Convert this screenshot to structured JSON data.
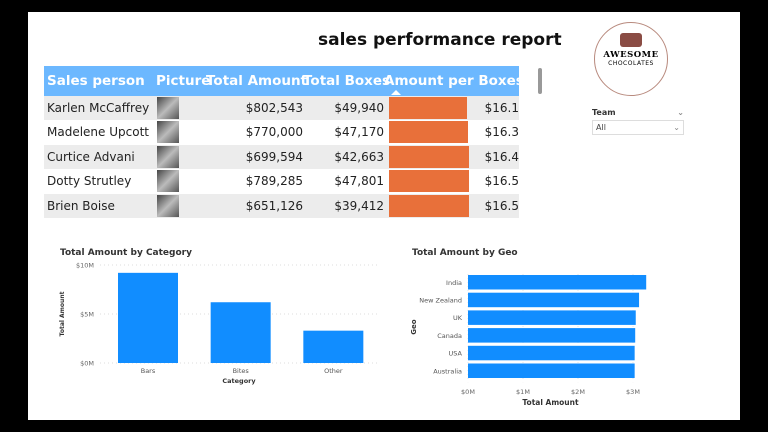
{
  "title": "sales performance report",
  "table": {
    "headers": [
      "Sales person",
      "Picture",
      "Total Amount",
      "Total Boxes",
      "Amount per Boxes"
    ],
    "rows": [
      {
        "name": "Karlen McCaffrey",
        "amount": "$802,543",
        "boxes": "$49,940",
        "per_box": "$16.1",
        "per_box_value": 16.1
      },
      {
        "name": "Madelene Upcott",
        "amount": "$770,000",
        "boxes": "$47,170",
        "per_box": "$16.3",
        "per_box_value": 16.3
      },
      {
        "name": "Curtice Advani",
        "amount": "$699,594",
        "boxes": "$42,663",
        "per_box": "$16.4",
        "per_box_value": 16.4
      },
      {
        "name": "Dotty Strutley",
        "amount": "$789,285",
        "boxes": "$47,801",
        "per_box": "$16.5",
        "per_box_value": 16.5
      },
      {
        "name": "Brien Boise",
        "amount": "$651,126",
        "boxes": "$39,412",
        "per_box": "$16.5",
        "per_box_value": 16.5
      }
    ],
    "bar_color": "#e8703a",
    "header_color": "#6cb8ff",
    "sort": "ascending"
  },
  "logo": {
    "line1": "AWESOME",
    "line2": "CHOCOLATES"
  },
  "slicer": {
    "label": "Team",
    "value": "All"
  },
  "chart_data": [
    {
      "type": "bar",
      "title": "Total Amount by Category",
      "xlabel": "Category",
      "ylabel": "Total Amount",
      "categories": [
        "Bars",
        "Bites",
        "Other"
      ],
      "values": [
        9.2,
        6.2,
        3.3
      ],
      "unit": "$M",
      "yticks": [
        "$0M",
        "$5M",
        "$10M"
      ],
      "ylim": [
        0,
        10
      ],
      "grid": true,
      "color": "#118dff"
    },
    {
      "type": "bar",
      "orientation": "horizontal",
      "title": "Total Amount by Geo",
      "xlabel": "Total Amount",
      "ylabel": "Geo",
      "categories": [
        "India",
        "New Zealand",
        "UK",
        "Canada",
        "USA",
        "Australia"
      ],
      "values": [
        3.24,
        3.11,
        3.05,
        3.04,
        3.03,
        3.03
      ],
      "unit": "$M",
      "xticks": [
        "$0M",
        "$1M",
        "$2M",
        "$3M"
      ],
      "xlim": [
        0,
        3.3
      ],
      "grid": true,
      "color": "#118dff"
    }
  ]
}
